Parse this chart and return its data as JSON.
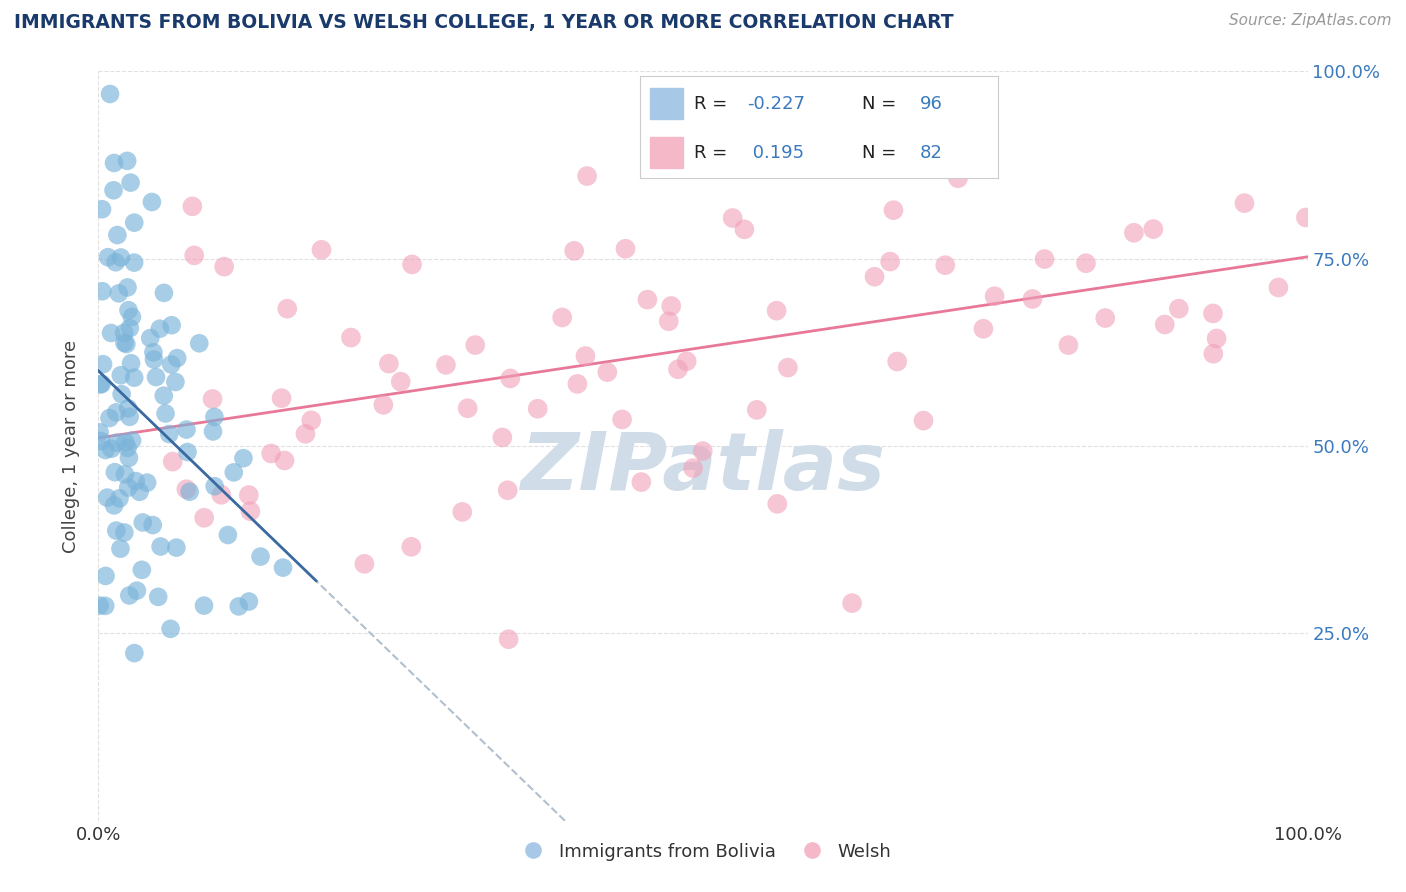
{
  "title": "IMMIGRANTS FROM BOLIVIA VS WELSH COLLEGE, 1 YEAR OR MORE CORRELATION CHART",
  "source_text": "Source: ZipAtlas.com",
  "ylabel": "College, 1 year or more",
  "legend_labels": [
    "Immigrants from Bolivia",
    "Welsh"
  ],
  "blue_R": -0.227,
  "blue_N": 96,
  "pink_R": 0.195,
  "pink_N": 82,
  "blue_color": "#7ab3d9",
  "pink_color": "#f0a0b8",
  "blue_legend_color": "#a8c8e8",
  "pink_legend_color": "#f4b8c8",
  "trend_blue_color": "#b0c0d0",
  "trend_pink_color": "#e87898",
  "watermark": "ZIPatlas",
  "watermark_color": "#d0dde8",
  "background_color": "#ffffff",
  "grid_color": "#e0e0e0",
  "title_color": "#1a3a6b",
  "right_tick_color": "#3a7abf",
  "source_color": "#999999"
}
